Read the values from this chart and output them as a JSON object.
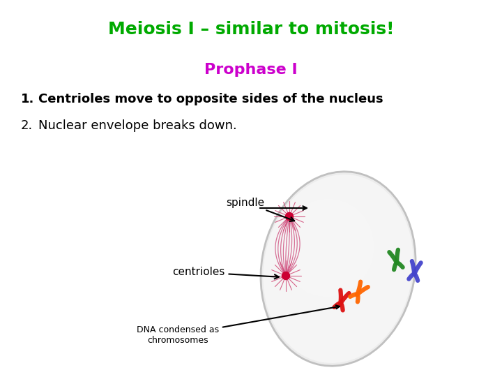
{
  "title": "Meiosis I – similar to mitosis!",
  "title_color": "#00aa00",
  "subtitle": "Prophase I",
  "subtitle_color": "#cc00cc",
  "item1_num": "1.",
  "item1_text": "  Centrioles move to opposite sides of the nucleus",
  "item2_num": "2.",
  "item2_text": "  Nuclear envelope breaks down.",
  "item_color": "#000000",
  "bg_color": "#ffffff",
  "label_spindle": "spindle",
  "label_centrioles": "centrioles",
  "label_dna": "DNA condensed as\nchromosomes",
  "cell_fill": "#e8e8e8",
  "cell_edge": "#c0c0c0",
  "spindle_color": "#cc4477",
  "centriole_color": "#cc0033",
  "centriole_ray_color": "#cc3366"
}
